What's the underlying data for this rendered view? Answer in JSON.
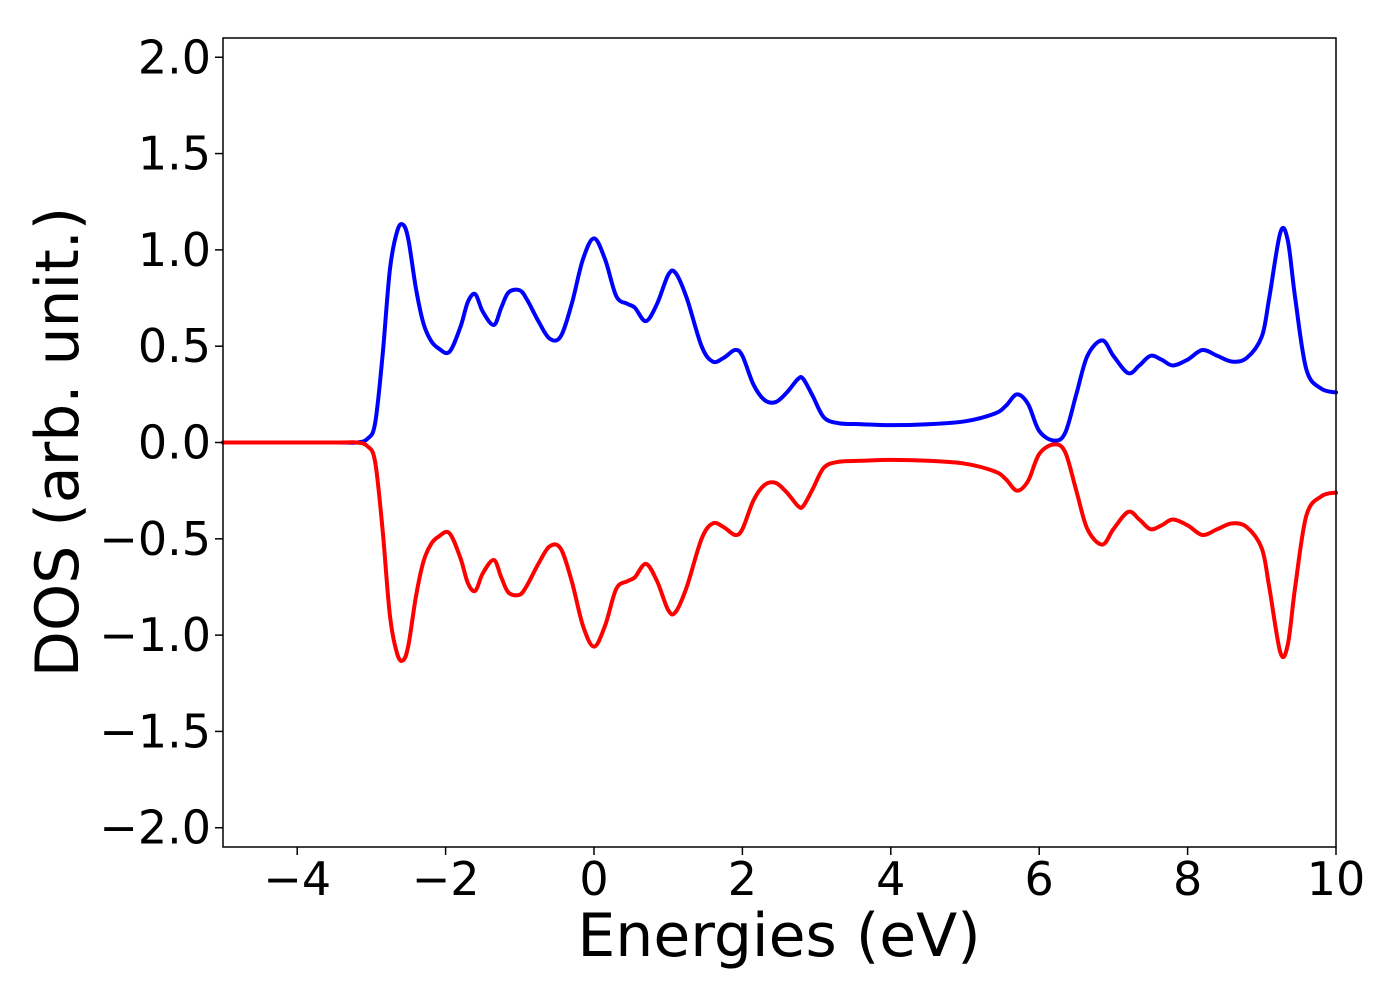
{
  "chart_data": {
    "type": "line",
    "title": "",
    "xlabel": "Energies (eV)",
    "ylabel": "DOS (arb. unit.)",
    "xlim": [
      -5,
      10
    ],
    "ylim": [
      -2.1,
      2.1
    ],
    "grid": false,
    "legend": "none",
    "xticks": [
      -4,
      -2,
      0,
      2,
      4,
      6,
      8,
      10
    ],
    "xtick_labels": [
      "−4",
      "−2",
      "0",
      "2",
      "4",
      "6",
      "8",
      "10"
    ],
    "yticks": [
      2.0,
      1.5,
      1.0,
      0.5,
      0.0,
      -0.5,
      -1.0,
      -1.5,
      -2.0
    ],
    "ytick_labels": [
      "2.0",
      "1.5",
      "1.0",
      "0.5",
      "0.0",
      "−0.5",
      "−1.0",
      "−1.5",
      "−2.0"
    ],
    "colors": {
      "spin_up": "#0000ff",
      "spin_down": "#ff0000"
    },
    "series": [
      {
        "color": "#0000ff",
        "x": [
          -5.0,
          -3.5,
          -3.2,
          -3.05,
          -2.95,
          -2.85,
          -2.75,
          -2.65,
          -2.57,
          -2.5,
          -2.4,
          -2.3,
          -2.2,
          -2.1,
          -1.95,
          -1.8,
          -1.7,
          -1.6,
          -1.5,
          -1.35,
          -1.25,
          -1.15,
          -1.0,
          -0.9,
          -0.75,
          -0.6,
          -0.45,
          -0.3,
          -0.15,
          0.0,
          0.15,
          0.3,
          0.45,
          0.55,
          0.7,
          0.85,
          1.0,
          1.1,
          1.25,
          1.45,
          1.6,
          1.75,
          1.9,
          2.0,
          2.15,
          2.3,
          2.45,
          2.6,
          2.75,
          2.82,
          2.95,
          3.1,
          3.3,
          3.6,
          4.0,
          4.5,
          5.0,
          5.4,
          5.55,
          5.7,
          5.85,
          6.0,
          6.2,
          6.35,
          6.5,
          6.65,
          6.85,
          7.0,
          7.2,
          7.35,
          7.5,
          7.65,
          7.8,
          8.0,
          8.2,
          8.4,
          8.6,
          8.8,
          9.0,
          9.1,
          9.25,
          9.35,
          9.45,
          9.6,
          9.8,
          10.0
        ],
        "y": [
          0.0,
          0.0,
          0.0,
          0.02,
          0.1,
          0.45,
          0.9,
          1.1,
          1.13,
          1.05,
          0.8,
          0.62,
          0.53,
          0.49,
          0.47,
          0.6,
          0.73,
          0.77,
          0.68,
          0.61,
          0.7,
          0.78,
          0.79,
          0.74,
          0.63,
          0.54,
          0.55,
          0.72,
          0.95,
          1.06,
          0.95,
          0.76,
          0.72,
          0.7,
          0.63,
          0.72,
          0.87,
          0.88,
          0.75,
          0.5,
          0.42,
          0.44,
          0.48,
          0.45,
          0.3,
          0.22,
          0.21,
          0.26,
          0.33,
          0.33,
          0.24,
          0.13,
          0.1,
          0.095,
          0.09,
          0.095,
          0.11,
          0.15,
          0.19,
          0.25,
          0.2,
          0.06,
          0.01,
          0.05,
          0.25,
          0.45,
          0.53,
          0.45,
          0.36,
          0.4,
          0.45,
          0.43,
          0.4,
          0.43,
          0.48,
          0.45,
          0.42,
          0.44,
          0.55,
          0.75,
          1.09,
          1.05,
          0.75,
          0.38,
          0.28,
          0.26
        ]
      },
      {
        "color": "#ff0000",
        "x": [
          -5.0,
          -3.5,
          -3.2,
          -3.05,
          -2.95,
          -2.85,
          -2.75,
          -2.65,
          -2.57,
          -2.5,
          -2.4,
          -2.3,
          -2.2,
          -2.1,
          -1.95,
          -1.8,
          -1.7,
          -1.6,
          -1.5,
          -1.35,
          -1.25,
          -1.15,
          -1.0,
          -0.9,
          -0.75,
          -0.6,
          -0.45,
          -0.3,
          -0.15,
          0.0,
          0.15,
          0.3,
          0.45,
          0.55,
          0.7,
          0.85,
          1.0,
          1.1,
          1.25,
          1.45,
          1.6,
          1.75,
          1.9,
          2.0,
          2.15,
          2.3,
          2.45,
          2.6,
          2.75,
          2.82,
          2.95,
          3.1,
          3.3,
          3.6,
          4.0,
          4.5,
          5.0,
          5.4,
          5.55,
          5.7,
          5.85,
          6.0,
          6.2,
          6.35,
          6.5,
          6.65,
          6.85,
          7.0,
          7.2,
          7.35,
          7.5,
          7.65,
          7.8,
          8.0,
          8.2,
          8.4,
          8.6,
          8.8,
          9.0,
          9.1,
          9.25,
          9.35,
          9.45,
          9.6,
          9.8,
          10.0
        ],
        "y": [
          0.0,
          0.0,
          0.0,
          -0.02,
          -0.1,
          -0.45,
          -0.9,
          -1.1,
          -1.13,
          -1.05,
          -0.8,
          -0.62,
          -0.53,
          -0.49,
          -0.47,
          -0.6,
          -0.73,
          -0.77,
          -0.68,
          -0.61,
          -0.7,
          -0.78,
          -0.79,
          -0.74,
          -0.63,
          -0.54,
          -0.55,
          -0.72,
          -0.95,
          -1.06,
          -0.95,
          -0.76,
          -0.72,
          -0.7,
          -0.63,
          -0.72,
          -0.87,
          -0.88,
          -0.75,
          -0.5,
          -0.42,
          -0.44,
          -0.48,
          -0.45,
          -0.3,
          -0.22,
          -0.21,
          -0.26,
          -0.33,
          -0.33,
          -0.24,
          -0.13,
          -0.1,
          -0.095,
          -0.09,
          -0.095,
          -0.11,
          -0.15,
          -0.19,
          -0.25,
          -0.2,
          -0.06,
          -0.01,
          -0.05,
          -0.25,
          -0.45,
          -0.53,
          -0.45,
          -0.36,
          -0.4,
          -0.45,
          -0.43,
          -0.4,
          -0.43,
          -0.48,
          -0.45,
          -0.42,
          -0.44,
          -0.55,
          -0.75,
          -1.09,
          -1.05,
          -0.75,
          -0.38,
          -0.28,
          -0.26
        ]
      }
    ]
  }
}
